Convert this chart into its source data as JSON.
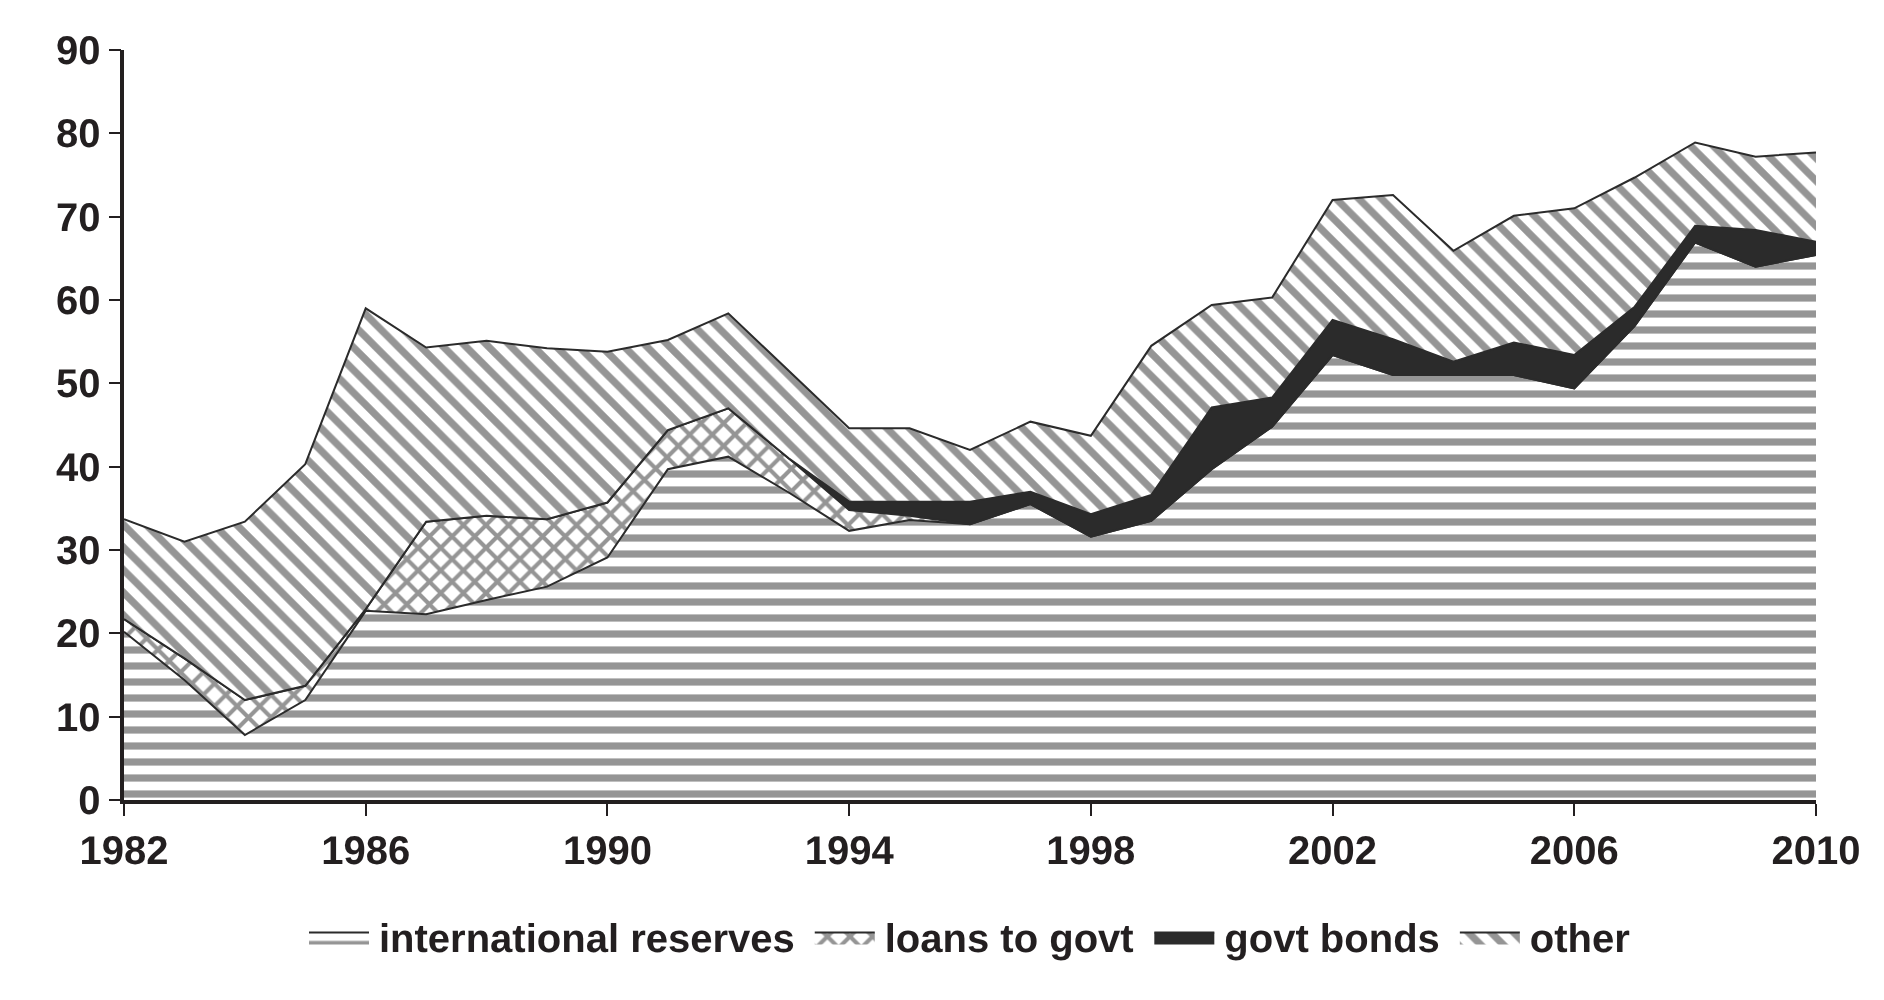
{
  "chart_data": {
    "type": "area",
    "stacked": true,
    "x": [
      1982,
      1983,
      1984,
      1985,
      1986,
      1987,
      1988,
      1989,
      1990,
      1991,
      1992,
      1993,
      1994,
      1995,
      1996,
      1997,
      1998,
      1999,
      2000,
      2001,
      2002,
      2003,
      2004,
      2005,
      2006,
      2007,
      2008,
      2009,
      2010
    ],
    "series": [
      {
        "name": "international reserves",
        "color": "#2b2b2b",
        "values": [
          20.2,
          14.4,
          7.8,
          12.0,
          22.7,
          22.3,
          24.0,
          25.6,
          29.1,
          39.7,
          41.2,
          36.9,
          32.3,
          33.6,
          33.1,
          35.5,
          31.6,
          33.5,
          39.7,
          44.8,
          53.4,
          51.0,
          51.0,
          51.0,
          49.4,
          56.9,
          66.9,
          64.0,
          65.4
        ]
      },
      {
        "name": "loans to govt",
        "color": "#2b2b2b",
        "values": [
          1.5,
          2.6,
          4.2,
          1.7,
          0.2,
          11.1,
          10.1,
          8.1,
          6.6,
          4.7,
          5.8,
          4.1,
          2.5,
          0.5,
          0,
          0,
          0,
          0,
          0,
          0,
          0,
          0,
          0,
          0,
          0,
          0,
          0,
          0,
          0
        ]
      },
      {
        "name": "govt bonds",
        "color": "#2b2b2b",
        "values": [
          0,
          0,
          0,
          0,
          0,
          0,
          0,
          0,
          0,
          0,
          0,
          0,
          1.0,
          1.7,
          2.7,
          1.5,
          2.7,
          3.1,
          7.4,
          3.5,
          4.2,
          4.3,
          1.6,
          3.9,
          4.0,
          2.3,
          2.0,
          4.4,
          1.6
        ]
      },
      {
        "name": "other",
        "color": "#2b2b2b",
        "values": [
          12.0,
          14.0,
          21.4,
          26.6,
          36.1,
          20.9,
          21.0,
          20.5,
          18.1,
          10.8,
          11.4,
          10.5,
          8.8,
          8.8,
          6.2,
          8.4,
          9.4,
          17.9,
          12.3,
          12.0,
          14.4,
          17.3,
          13.3,
          15.2,
          17.6,
          15.5,
          10.0,
          8.8,
          10.7
        ]
      }
    ],
    "xlim": [
      1982,
      2010
    ],
    "xticks": [
      1982,
      1986,
      1990,
      1994,
      1998,
      2002,
      2006,
      2010
    ],
    "ylim": [
      0,
      90
    ],
    "yticks": [
      0,
      10,
      20,
      30,
      40,
      50,
      60,
      70,
      80,
      90
    ],
    "legend": "bottom"
  }
}
